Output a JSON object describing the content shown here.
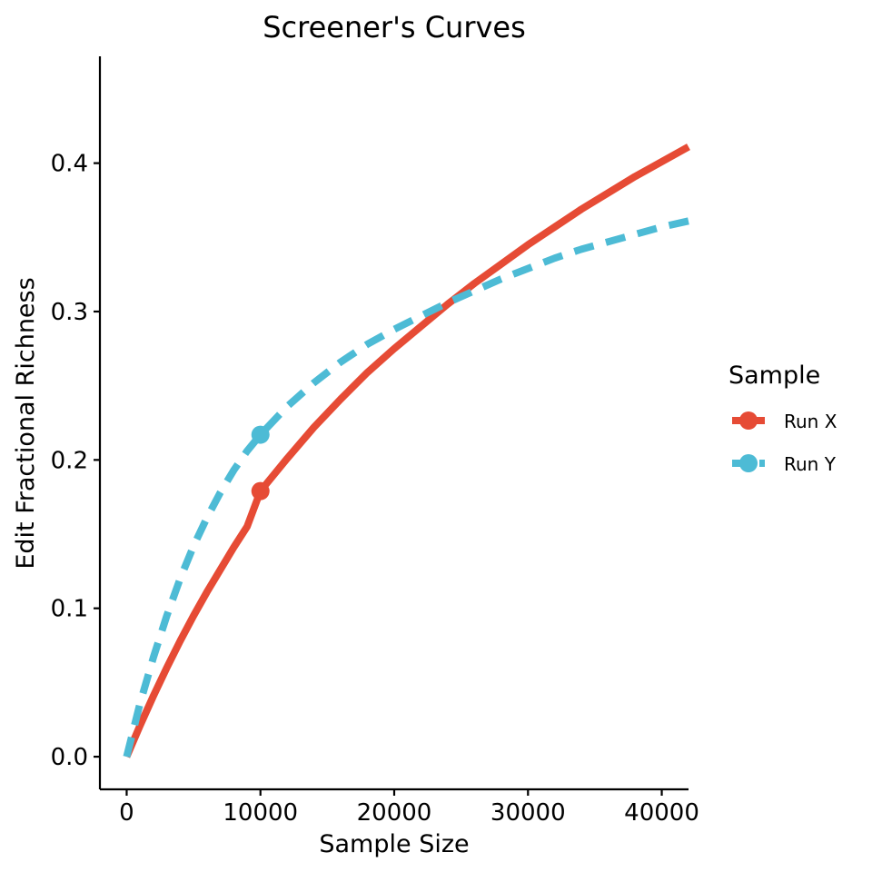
{
  "chart_data": {
    "type": "line",
    "title": "Screener's Curves",
    "xlabel": "Sample Size",
    "ylabel": "Edit Fractional Richness",
    "xlim": [
      -2000,
      42000
    ],
    "ylim": [
      -0.022,
      0.472
    ],
    "x_ticks": [
      0,
      10000,
      20000,
      30000,
      40000
    ],
    "x_tick_labels": [
      "0",
      "10000",
      "20000",
      "30000",
      "40000"
    ],
    "y_ticks": [
      0.0,
      0.1,
      0.2,
      0.3,
      0.4
    ],
    "y_tick_labels": [
      "0.0",
      "0.1",
      "0.2",
      "0.3",
      "0.4"
    ],
    "grid": false,
    "legend": {
      "title": "Sample",
      "placement": "right"
    },
    "series": [
      {
        "name": "Run X",
        "color": "#E64B35",
        "line_style": "solid",
        "x": [
          0,
          1000,
          2000,
          3000,
          4000,
          5000,
          6000,
          7000,
          8000,
          9000,
          10000,
          12000,
          14000,
          16000,
          18000,
          20000,
          22000,
          24000,
          26000,
          28000,
          30000,
          32000,
          34000,
          36000,
          38000,
          40000,
          42000
        ],
        "y": [
          0.0,
          0.021,
          0.041,
          0.06,
          0.078,
          0.095,
          0.111,
          0.126,
          0.141,
          0.155,
          0.179,
          0.201,
          0.222,
          0.241,
          0.259,
          0.275,
          0.29,
          0.305,
          0.319,
          0.332,
          0.345,
          0.357,
          0.369,
          0.38,
          0.391,
          0.401,
          0.411
        ],
        "marker": {
          "x": 10000,
          "y": 0.179
        }
      },
      {
        "name": "Run Y",
        "color": "#4DBBD5",
        "line_style": "dashed",
        "x": [
          0,
          1000,
          2000,
          3000,
          4000,
          5000,
          6000,
          7000,
          8000,
          9000,
          10000,
          12000,
          14000,
          16000,
          18000,
          20000,
          22000,
          24000,
          26000,
          28000,
          30000,
          32000,
          34000,
          36000,
          38000,
          40000,
          42000
        ],
        "y": [
          0.0,
          0.036,
          0.067,
          0.095,
          0.12,
          0.142,
          0.161,
          0.178,
          0.193,
          0.206,
          0.217,
          0.236,
          0.252,
          0.266,
          0.278,
          0.288,
          0.297,
          0.306,
          0.314,
          0.322,
          0.329,
          0.336,
          0.342,
          0.347,
          0.352,
          0.357,
          0.361
        ],
        "marker": {
          "x": 10000,
          "y": 0.217
        }
      }
    ]
  }
}
